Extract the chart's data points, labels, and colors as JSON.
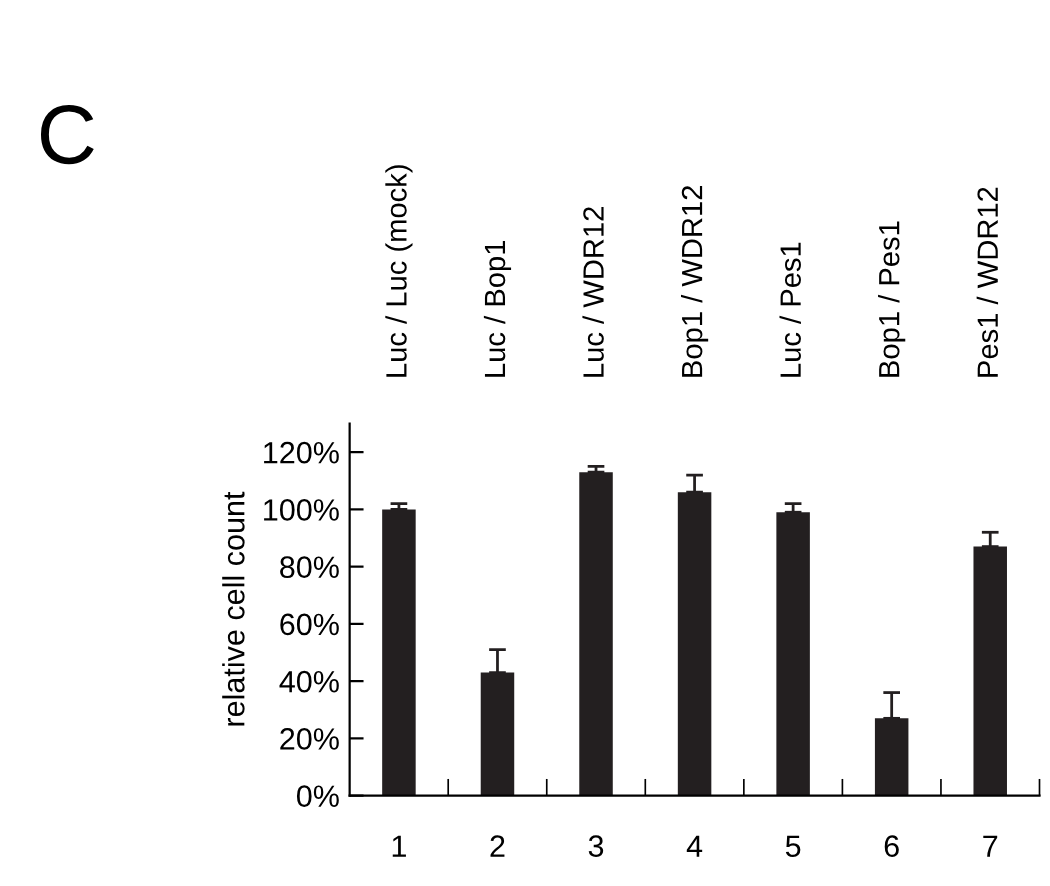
{
  "chart_data": {
    "type": "bar",
    "categories": [
      "1",
      "2",
      "3",
      "4",
      "5",
      "6",
      "7"
    ],
    "values": [
      100,
      43,
      113,
      106,
      99,
      27,
      87
    ],
    "errors": [
      [
        100,
        102
      ],
      [
        43,
        51
      ],
      [
        113,
        115
      ],
      [
        106,
        112
      ],
      [
        99,
        102
      ],
      [
        27,
        36
      ],
      [
        87,
        92
      ]
    ],
    "color": "#231f20",
    "ylabel": "relative cell count",
    "ylim": [
      0,
      130
    ],
    "yticks": [
      {
        "value": 0,
        "label": "0%"
      },
      {
        "value": 20,
        "label": "20%"
      },
      {
        "value": 40,
        "label": "40%"
      },
      {
        "value": 60,
        "label": "60%"
      },
      {
        "value": 80,
        "label": "80%"
      },
      {
        "value": 100,
        "label": "100%"
      },
      {
        "value": 120,
        "label": "120%"
      }
    ],
    "grid": false,
    "annotations": [
      "C",
      "Luc / Luc (mock)",
      "Luc / Bop1",
      "Luc / WDR12",
      "Bop1 / WDR12",
      "Luc / Pes1",
      "Bop1 / Pes1",
      "Pes1 / WDR12"
    ]
  }
}
